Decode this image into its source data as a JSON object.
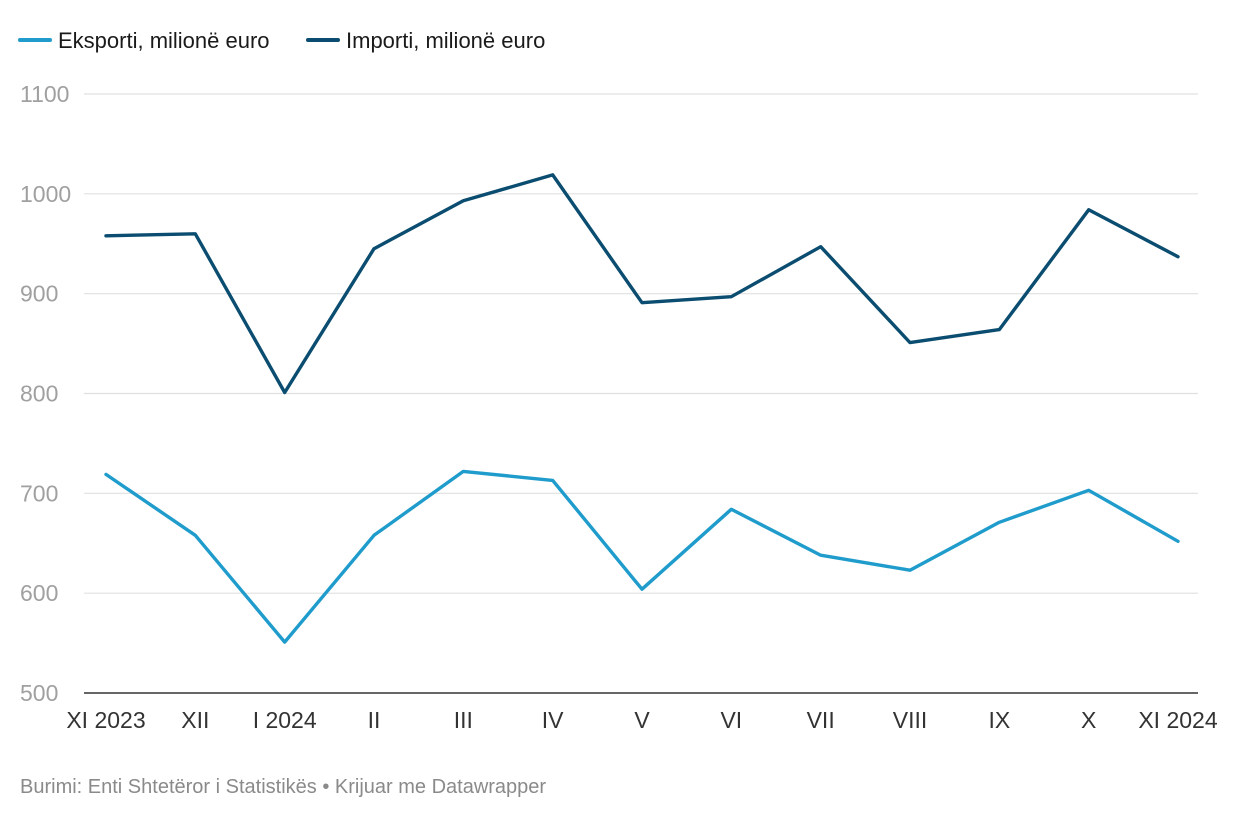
{
  "chart_data": {
    "type": "line",
    "categories": [
      "XI 2023",
      "XII",
      "I 2024",
      "II",
      "III",
      "IV",
      "V",
      "VI",
      "VII",
      "VIII",
      "IX",
      "X",
      "XI 2024"
    ],
    "series": [
      {
        "name": "Eksporti, milionë euro",
        "color": "#1f9ccc",
        "values": [
          719,
          658,
          551,
          658,
          722,
          713,
          604,
          684,
          638,
          623,
          671,
          703,
          652
        ]
      },
      {
        "name": "Importi, milionë euro",
        "color": "#0b4d70",
        "values": [
          958,
          960,
          801,
          945,
          993,
          1019,
          891,
          897,
          947,
          851,
          864,
          984,
          937
        ]
      }
    ],
    "ylim": [
      500,
      1100
    ],
    "yticks": [
      1100,
      1000,
      900,
      800,
      700,
      600,
      500
    ],
    "grid": true,
    "legend_position": "top-left",
    "source": "Burimi: Enti Shtetëror i Statistikës • Krijuar me Datawrapper"
  }
}
